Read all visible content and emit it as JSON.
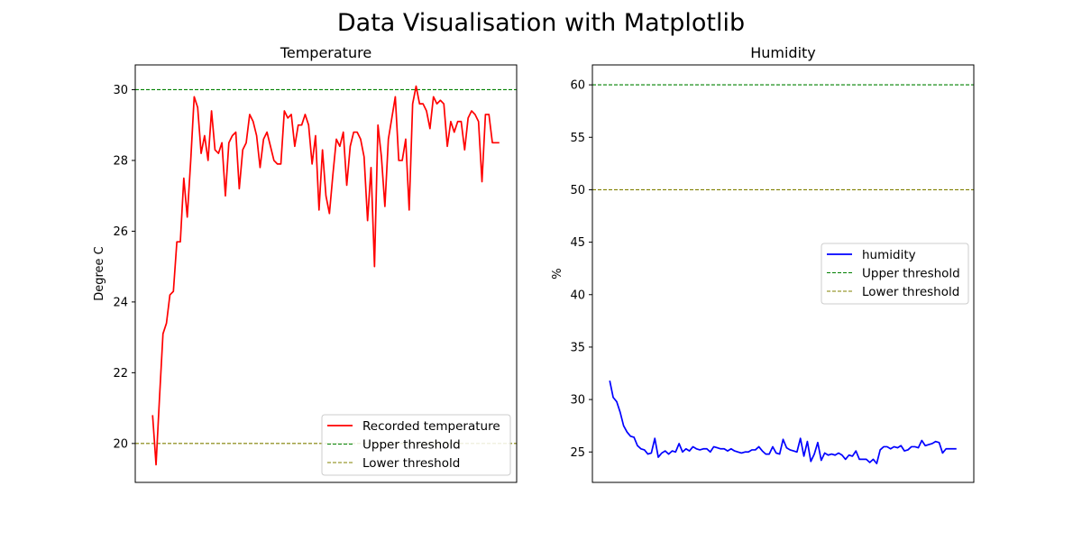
{
  "figure": {
    "suptitle": "Data Visualisation with Matplotlib"
  },
  "chart_data": [
    {
      "type": "line",
      "title": "Temperature",
      "xlabel": "",
      "ylabel": "Degree C",
      "ylim": [
        18.9,
        30.7
      ],
      "yticks": [
        20,
        22,
        24,
        26,
        28,
        30
      ],
      "xticks_visible": false,
      "grid": false,
      "legend_location": "lower-right",
      "series": [
        {
          "name": "Recorded temperature",
          "color": "#ff0000",
          "style": "solid",
          "x": [
            0,
            1,
            2,
            3,
            4,
            5,
            6,
            7,
            8,
            9,
            10,
            11,
            12,
            13,
            14,
            15,
            16,
            17,
            18,
            19,
            20,
            21,
            22,
            23,
            24,
            25,
            26,
            27,
            28,
            29,
            30,
            31,
            32,
            33,
            34,
            35,
            36,
            37,
            38,
            39,
            40,
            41,
            42,
            43,
            44,
            45,
            46,
            47,
            48,
            49,
            50,
            51,
            52,
            53,
            54,
            55,
            56,
            57,
            58,
            59,
            60,
            61,
            62,
            63,
            64,
            65,
            66,
            67,
            68,
            69,
            70,
            71,
            72,
            73,
            74,
            75,
            76,
            77,
            78,
            79,
            80,
            81,
            82,
            83,
            84,
            85,
            86,
            87,
            88,
            89,
            90,
            91,
            92,
            93,
            94,
            95,
            96,
            97,
            98,
            99,
            100
          ],
          "values": [
            20.8,
            19.4,
            21.3,
            23.1,
            23.4,
            24.2,
            24.3,
            25.7,
            25.7,
            27.5,
            26.4,
            28.0,
            29.8,
            29.5,
            28.2,
            28.7,
            28.0,
            29.4,
            28.3,
            28.2,
            28.5,
            27.0,
            28.5,
            28.7,
            28.8,
            27.2,
            28.3,
            28.5,
            29.3,
            29.1,
            28.7,
            27.8,
            28.6,
            28.8,
            28.4,
            28.0,
            27.9,
            27.9,
            29.4,
            29.2,
            29.3,
            28.4,
            29.0,
            29.0,
            29.3,
            29.0,
            27.9,
            28.7,
            26.6,
            28.3,
            27.0,
            26.5,
            27.6,
            28.6,
            28.4,
            28.8,
            27.3,
            28.4,
            28.8,
            28.8,
            28.6,
            28.1,
            26.3,
            27.8,
            25.0,
            29.0,
            28.1,
            26.7,
            28.6,
            29.2,
            29.8,
            28.0,
            28.0,
            28.6,
            26.6,
            29.6,
            30.1,
            29.6,
            29.6,
            29.4,
            28.9,
            29.8,
            29.6,
            29.7,
            29.6,
            28.4,
            29.1,
            28.8,
            29.1,
            29.1,
            28.3,
            29.2,
            29.4,
            29.3,
            29.1,
            27.4,
            29.3,
            29.3,
            28.5,
            28.5,
            28.5
          ]
        },
        {
          "name": "Upper threshold",
          "color": "#008000",
          "style": "dashed",
          "y": 30
        },
        {
          "name": "Lower threshold",
          "color": "#808000",
          "style": "dashed",
          "y": 20
        }
      ]
    },
    {
      "type": "line",
      "title": "Humidity",
      "xlabel": "",
      "ylabel": "%",
      "ylim": [
        22.1,
        61.9
      ],
      "yticks": [
        25,
        30,
        35,
        40,
        45,
        50,
        55,
        60
      ],
      "xticks_visible": false,
      "grid": false,
      "legend_location": "center-right",
      "series": [
        {
          "name": "humidity",
          "color": "#0000ff",
          "style": "solid",
          "x": [
            0,
            1,
            2,
            3,
            4,
            5,
            6,
            7,
            8,
            9,
            10,
            11,
            12,
            13,
            14,
            15,
            16,
            17,
            18,
            19,
            20,
            21,
            22,
            23,
            24,
            25,
            26,
            27,
            28,
            29,
            30,
            31,
            32,
            33,
            34,
            35,
            36,
            37,
            38,
            39,
            40,
            41,
            42,
            43,
            44,
            45,
            46,
            47,
            48,
            49,
            50,
            51,
            52,
            53,
            54,
            55,
            56,
            57,
            58,
            59,
            60,
            61,
            62,
            63,
            64,
            65,
            66,
            67,
            68,
            69,
            70,
            71,
            72,
            73,
            74,
            75,
            76,
            77,
            78,
            79,
            80,
            81,
            82,
            83,
            84,
            85,
            86,
            87,
            88,
            89,
            90,
            91,
            92,
            93,
            94,
            95,
            96,
            97,
            98,
            99,
            100
          ],
          "values": [
            31.8,
            30.2,
            29.8,
            28.8,
            27.5,
            26.9,
            26.5,
            26.4,
            25.6,
            25.3,
            25.2,
            24.8,
            24.9,
            26.3,
            24.5,
            24.9,
            25.1,
            24.8,
            25.1,
            25.0,
            25.8,
            25.0,
            25.3,
            25.1,
            25.5,
            25.3,
            25.2,
            25.3,
            25.3,
            25.0,
            25.5,
            25.4,
            25.3,
            25.3,
            25.1,
            25.3,
            25.1,
            25.0,
            24.9,
            25.0,
            25.0,
            25.2,
            25.2,
            25.5,
            25.1,
            24.8,
            24.8,
            25.5,
            24.9,
            24.8,
            26.2,
            25.4,
            25.2,
            25.1,
            25.0,
            26.3,
            24.6,
            26.0,
            24.1,
            24.8,
            25.9,
            24.2,
            24.9,
            24.7,
            24.8,
            24.7,
            24.9,
            24.7,
            24.3,
            24.7,
            24.6,
            25.1,
            24.3,
            24.3,
            24.3,
            24.0,
            24.3,
            23.9,
            25.2,
            25.5,
            25.5,
            25.3,
            25.5,
            25.4,
            25.6,
            25.1,
            25.2,
            25.5,
            25.5,
            25.4,
            26.1,
            25.6,
            25.7,
            25.8,
            26.0,
            25.9,
            24.9,
            25.3,
            25.3,
            25.3,
            25.3
          ]
        },
        {
          "name": "Upper threshold",
          "color": "#008000",
          "style": "dashed",
          "y": 60
        },
        {
          "name": "Lower threshold",
          "color": "#808000",
          "style": "dashed",
          "y": 50
        }
      ]
    }
  ]
}
